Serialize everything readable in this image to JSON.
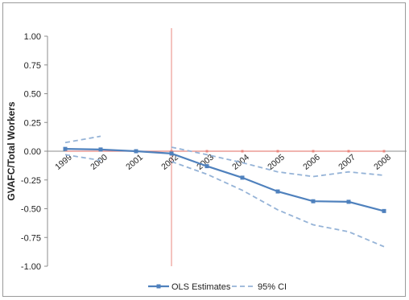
{
  "chart_data": {
    "type": "line",
    "title": "",
    "xlabel": "",
    "ylabel": "GVAFC/Total Workers",
    "ylim": [
      -1.0,
      1.0
    ],
    "y_ticks": [
      "1.00",
      "0.75",
      "0.50",
      "0.25",
      "0.00",
      "-0.25",
      "-0.50",
      "-0.75",
      "-1.00"
    ],
    "categories": [
      "1999",
      "2000",
      "2001",
      "2002",
      "2003",
      "2004",
      "2005",
      "2006",
      "2007",
      "2008"
    ],
    "vertical_reference_at": "2002",
    "horizontal_reference_at": 0,
    "grid": false,
    "legend_position": "bottom",
    "series": [
      {
        "name": "OLS Estimates",
        "style": "solid-marker",
        "color": "#4F81BD",
        "values": [
          0.02,
          0.015,
          0.0,
          -0.02,
          -0.13,
          -0.23,
          -0.35,
          -0.435,
          -0.44,
          -0.52
        ]
      },
      {
        "name": "95% CI",
        "style": "dashed",
        "color": "#95B3D7",
        "role": "upper",
        "values": [
          0.075,
          0.13,
          null,
          0.035,
          -0.03,
          -0.1,
          -0.18,
          -0.22,
          -0.18,
          -0.21
        ]
      },
      {
        "name": "",
        "style": "dashed",
        "color": "#95B3D7",
        "role": "lower",
        "values": [
          -0.03,
          -0.08,
          null,
          -0.09,
          -0.2,
          -0.34,
          -0.51,
          -0.64,
          -0.7,
          -0.83
        ]
      }
    ],
    "colors": {
      "reference_line": "#E8877F",
      "axis": "#8c8c8c"
    }
  }
}
